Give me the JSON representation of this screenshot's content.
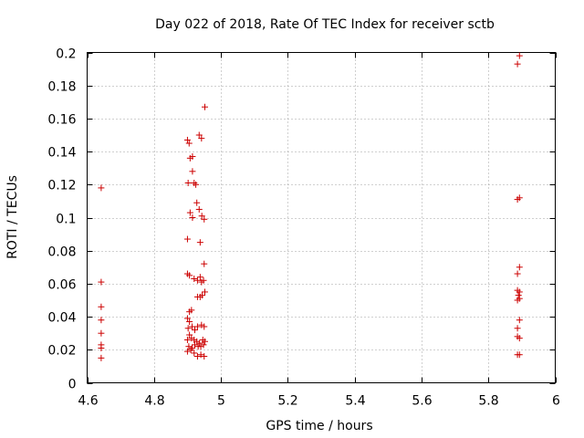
{
  "chart_data": {
    "type": "scatter",
    "title": "Day 022 of 2018, Rate Of TEC Index for receiver sctb",
    "xlabel": "GPS time / hours",
    "ylabel": "ROTI / TECUs",
    "xlim": [
      4.6,
      6.0
    ],
    "ylim": [
      0,
      0.2
    ],
    "xticks": [
      4.6,
      4.8,
      5.0,
      5.2,
      5.4,
      5.6,
      5.8,
      6.0
    ],
    "xtick_labels": [
      "4.6",
      "4.8",
      "5",
      "5.2",
      "5.4",
      "5.6",
      "5.8",
      "6"
    ],
    "yticks": [
      0,
      0.02,
      0.04,
      0.06,
      0.08,
      0.1,
      0.12,
      0.14,
      0.16,
      0.18,
      0.2
    ],
    "ytick_labels": [
      "0",
      "0.02",
      "0.04",
      "0.06",
      "0.08",
      "0.1",
      "0.12",
      "0.14",
      "0.16",
      "0.18",
      "0.2"
    ],
    "grid": true,
    "marker": "+",
    "color": "#cc0000",
    "series": [
      {
        "name": "ROTI",
        "points": [
          [
            4.642,
            0.118
          ],
          [
            4.642,
            0.061
          ],
          [
            4.642,
            0.046
          ],
          [
            4.642,
            0.038
          ],
          [
            4.642,
            0.03
          ],
          [
            4.642,
            0.023
          ],
          [
            4.642,
            0.021
          ],
          [
            4.642,
            0.015
          ],
          [
            4.9,
            0.147
          ],
          [
            4.905,
            0.145
          ],
          [
            4.908,
            0.136
          ],
          [
            4.915,
            0.137
          ],
          [
            4.915,
            0.128
          ],
          [
            4.902,
            0.121
          ],
          [
            4.92,
            0.121
          ],
          [
            4.925,
            0.12
          ],
          [
            4.908,
            0.103
          ],
          [
            4.915,
            0.1
          ],
          [
            4.928,
            0.109
          ],
          [
            4.935,
            0.105
          ],
          [
            4.943,
            0.101
          ],
          [
            4.95,
            0.099
          ],
          [
            4.9,
            0.087
          ],
          [
            4.938,
            0.085
          ],
          [
            4.935,
            0.15
          ],
          [
            4.942,
            0.148
          ],
          [
            4.952,
            0.167
          ],
          [
            4.95,
            0.072
          ],
          [
            4.9,
            0.066
          ],
          [
            4.906,
            0.065
          ],
          [
            4.92,
            0.063
          ],
          [
            4.93,
            0.062
          ],
          [
            4.938,
            0.064
          ],
          [
            4.942,
            0.061
          ],
          [
            4.948,
            0.062
          ],
          [
            4.952,
            0.055
          ],
          [
            4.93,
            0.052
          ],
          [
            4.938,
            0.052
          ],
          [
            4.944,
            0.053
          ],
          [
            4.912,
            0.044
          ],
          [
            4.906,
            0.043
          ],
          [
            4.9,
            0.039
          ],
          [
            4.906,
            0.037
          ],
          [
            4.902,
            0.033
          ],
          [
            4.914,
            0.034
          ],
          [
            4.922,
            0.032
          ],
          [
            4.93,
            0.034
          ],
          [
            4.942,
            0.035
          ],
          [
            4.95,
            0.034
          ],
          [
            4.906,
            0.029
          ],
          [
            4.9,
            0.026
          ],
          [
            4.912,
            0.027
          ],
          [
            4.92,
            0.026
          ],
          [
            4.928,
            0.025
          ],
          [
            4.936,
            0.024
          ],
          [
            4.946,
            0.026
          ],
          [
            4.952,
            0.025
          ],
          [
            4.904,
            0.022
          ],
          [
            4.914,
            0.021
          ],
          [
            4.922,
            0.023
          ],
          [
            4.932,
            0.022
          ],
          [
            4.94,
            0.022
          ],
          [
            4.948,
            0.023
          ],
          [
            4.9,
            0.019
          ],
          [
            4.91,
            0.02
          ],
          [
            4.92,
            0.018
          ],
          [
            4.93,
            0.016
          ],
          [
            4.94,
            0.017
          ],
          [
            4.95,
            0.016
          ],
          [
            5.893,
            0.198
          ],
          [
            5.887,
            0.193
          ],
          [
            5.893,
            0.112
          ],
          [
            5.887,
            0.111
          ],
          [
            5.893,
            0.07
          ],
          [
            5.887,
            0.066
          ],
          [
            5.887,
            0.056
          ],
          [
            5.893,
            0.055
          ],
          [
            5.89,
            0.053
          ],
          [
            5.887,
            0.05
          ],
          [
            5.893,
            0.051
          ],
          [
            5.893,
            0.038
          ],
          [
            5.887,
            0.033
          ],
          [
            5.887,
            0.028
          ],
          [
            5.893,
            0.027
          ],
          [
            5.887,
            0.017
          ],
          [
            5.893,
            0.017
          ]
        ]
      }
    ]
  }
}
